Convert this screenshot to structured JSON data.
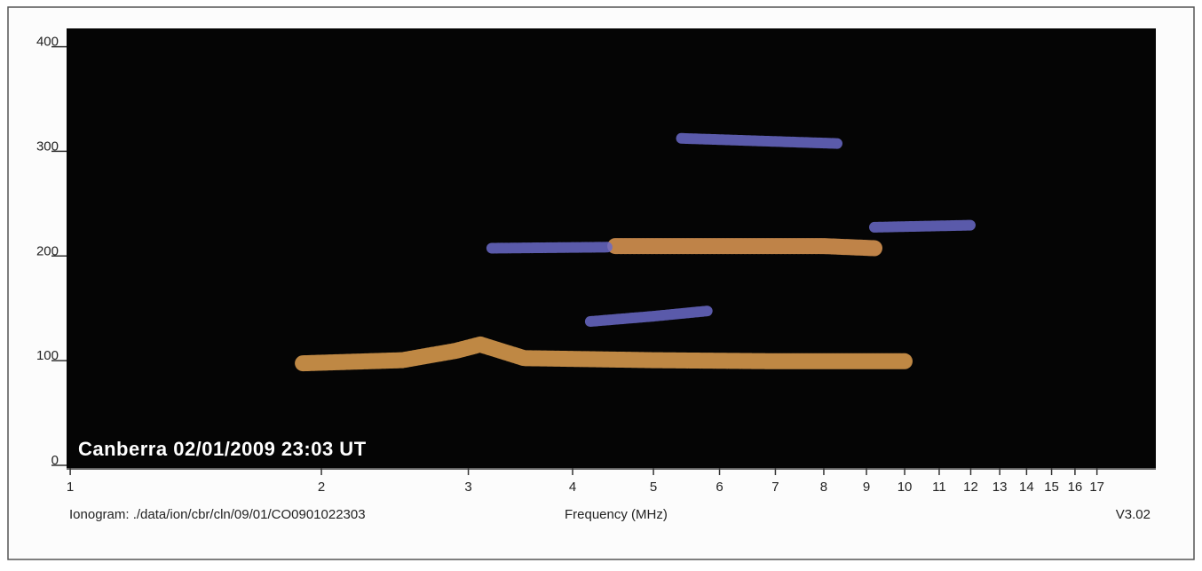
{
  "chart_data": {
    "type": "ionogram",
    "label": "Canberra  02/01/2009  23:03 UT",
    "source": "Ionogram: ./data/ion/cbr/cln/09/01/CO0901022303",
    "xlabel": "Frequency (MHz)",
    "version": "V3.02",
    "xscale": "log",
    "xlim": [
      0.99,
      20
    ],
    "ylim": [
      0,
      420
    ],
    "xticks": [
      1,
      2,
      3,
      4,
      5,
      6,
      7,
      8,
      9,
      10,
      11,
      12,
      13,
      14,
      15,
      16,
      17
    ],
    "yticks": [
      0,
      100,
      200,
      300,
      400
    ],
    "background": "#050505",
    "series": [
      {
        "color": "#e0a050",
        "x": [
          1.9,
          2.5,
          2.9,
          3.1,
          3.5,
          5,
          7,
          9,
          10
        ],
        "values": [
          100,
          103,
          112,
          118,
          105,
          103,
          102,
          102,
          102
        ]
      },
      {
        "color": "#e09a55",
        "x": [
          4.5,
          6,
          8,
          9.2
        ],
        "values": [
          212,
          212,
          212,
          210
        ]
      },
      {
        "color": "#6a6ac8",
        "x": [
          3.2,
          4.4
        ],
        "values": [
          210,
          211
        ]
      },
      {
        "color": "#6a6ac8",
        "x": [
          4.2,
          5,
          5.8
        ],
        "values": [
          140,
          145,
          150
        ]
      },
      {
        "color": "#6a6ac8",
        "x": [
          5.4,
          7,
          8.3
        ],
        "values": [
          315,
          312,
          310
        ]
      },
      {
        "color": "#6a6ac8",
        "x": [
          9.2,
          12
        ],
        "values": [
          230,
          232
        ]
      }
    ]
  }
}
